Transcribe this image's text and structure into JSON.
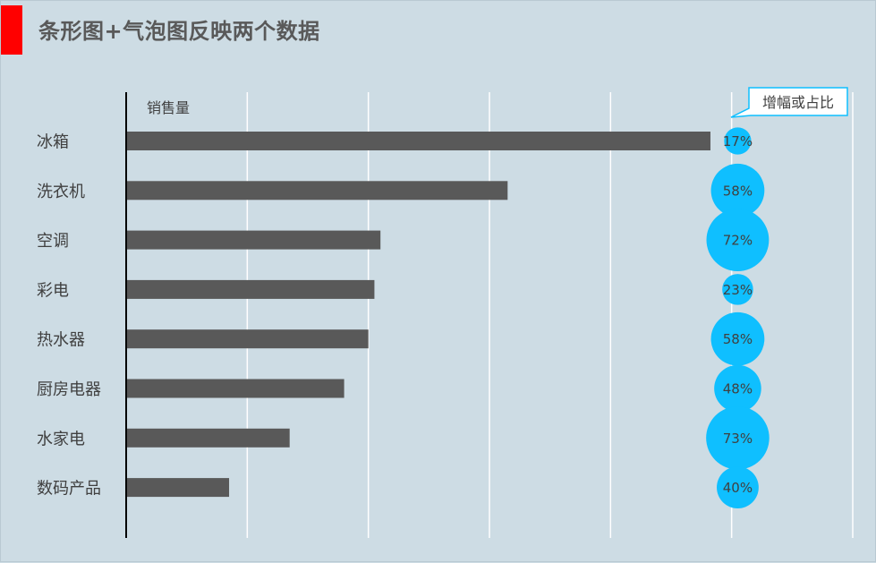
{
  "title": "条形图+气泡图反映两个数据",
  "colors": {
    "bar": "#595959",
    "bubble": "#0fbfff",
    "background": "#cddce4",
    "accent": "#ff0000"
  },
  "chart_data": {
    "type": "bar",
    "orientation": "horizontal",
    "categories": [
      "冰箱",
      "洗衣机",
      "空调",
      "彩电",
      "热水器",
      "厨房电器",
      "水家电",
      "数码产品"
    ],
    "series": [
      {
        "name": "销售量",
        "values": [
          96.5,
          63,
          42,
          41,
          40,
          36,
          27,
          17
        ]
      },
      {
        "name": "增幅或占比",
        "values": [
          "17%",
          "58%",
          "72%",
          "23%",
          "58%",
          "48%",
          "73%",
          "40%"
        ],
        "numeric": [
          17,
          58,
          72,
          23,
          58,
          48,
          73,
          40
        ]
      }
    ],
    "xlim": [
      0,
      120
    ],
    "grid": true,
    "series_label_bar": "销售量",
    "callout": "增幅或占比"
  }
}
